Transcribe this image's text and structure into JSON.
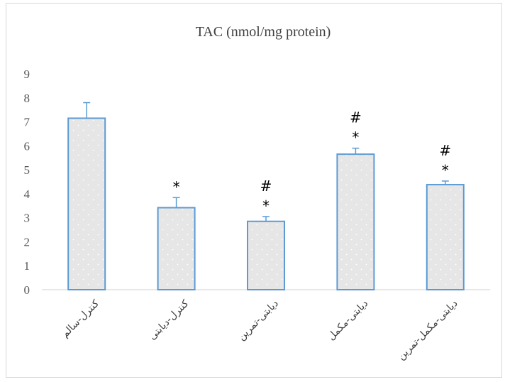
{
  "chart_data": {
    "type": "bar",
    "title": "TAC (nmol/mg protein)",
    "xlabel": "",
    "ylabel": "",
    "ylim": [
      0,
      9
    ],
    "yticks": [
      0,
      1,
      2,
      3,
      4,
      5,
      6,
      7,
      8,
      9
    ],
    "grid": false,
    "categories": [
      "کنترل-سالم",
      "کنترل-دیابتی",
      "دیابتی-تمرین",
      "دیابتی-مکمل",
      "دیابتی-مکمل-تمرین"
    ],
    "values": [
      7.15,
      3.42,
      2.85,
      5.65,
      4.38
    ],
    "error": [
      0.65,
      0.42,
      0.2,
      0.25,
      0.15
    ],
    "significance": [
      [],
      [
        "*"
      ],
      [
        "#",
        "*"
      ],
      [
        "#",
        "*"
      ],
      [
        "#",
        "*"
      ]
    ],
    "colors": {
      "bar_fill": "#e7e6e6",
      "bar_edge": "#5b9bd5",
      "dots": "#ffffff",
      "axis": "#d9d9d9",
      "text": "#595959"
    }
  }
}
